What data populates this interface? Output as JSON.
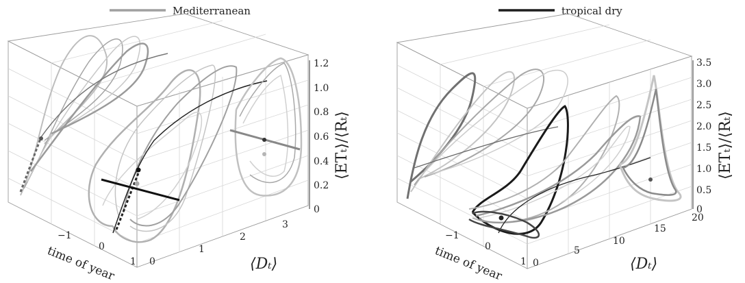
{
  "chart_data": [
    {
      "type": "line",
      "panel": "left",
      "legend": {
        "label": "Mediterranean",
        "color": "#9e9e9e",
        "placement": "top-center"
      },
      "axes": {
        "x": {
          "label": "time of year",
          "ticks": [
            "−1",
            "0",
            "1"
          ]
        },
        "y": {
          "label": "⟨Dₜ⟩",
          "ticks": [
            "0",
            "1",
            "2",
            "3"
          ]
        },
        "z": {
          "label": "⟨ETₜ⟩/⟨Rₜ⟩",
          "ticks": [
            "0",
            "0.2",
            "0.4",
            "0.6",
            "0.8",
            "1.0",
            "1.2"
          ],
          "range": [
            0,
            1.2
          ]
        }
      },
      "grid": true,
      "series_colors": [
        "#bdbdbd",
        "#a8a8a8",
        "#8a8a8a",
        "#1e1e1e"
      ]
    },
    {
      "type": "line",
      "panel": "right",
      "legend": {
        "label": "tropical dry",
        "color": "#1e1e1e",
        "placement": "top-center"
      },
      "axes": {
        "x": {
          "label": "time of year",
          "ticks": [
            "−1",
            "0",
            "1"
          ]
        },
        "y": {
          "label": "⟨Dₜ⟩",
          "ticks": [
            "0",
            "5",
            "10",
            "15",
            "20"
          ]
        },
        "z": {
          "label": "⟨ETₜ⟩/⟨Rₜ⟩",
          "ticks": [
            "0",
            "0.5",
            "1.0",
            "1.5",
            "2.0",
            "2.5",
            "3.0",
            "3.5"
          ],
          "range": [
            0,
            3.5
          ]
        }
      },
      "grid": true,
      "series_colors": [
        "#c4c4c4",
        "#9e9e9e",
        "#707070",
        "#1e1e1e"
      ]
    }
  ]
}
